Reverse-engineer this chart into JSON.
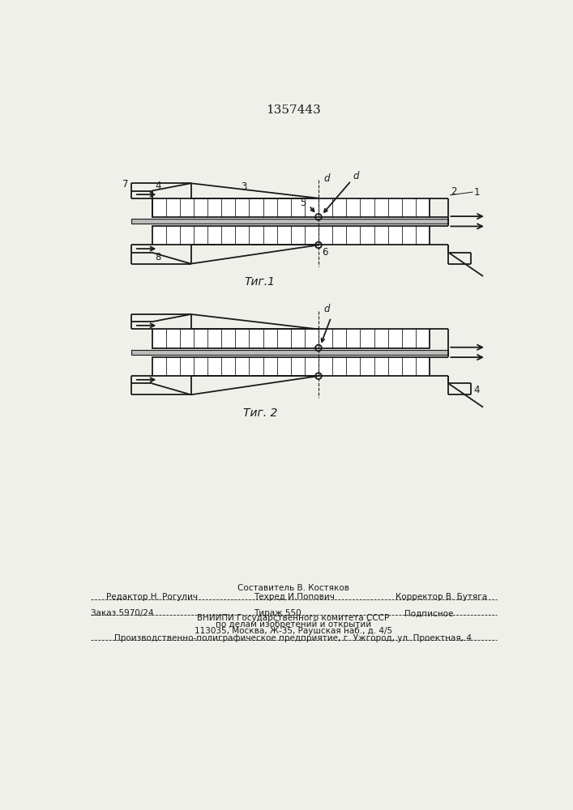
{
  "title": "1357443",
  "fig1_label": "Τиг.1",
  "fig2_label": "Τиг. 2",
  "bg_color": "#f0f0eb",
  "line_color": "#1a1a1a",
  "footer_line0_center": "Составитель В. Костяков",
  "footer_line1_left": "Редактор Н. Рогулич",
  "footer_line1_center": "Техред И.Попович",
  "footer_line1_right": "Корректор В. Бутяга",
  "footer_line2_left": "Заказ 5970/24",
  "footer_line2_center": "Тираж 550",
  "footer_line2_right": "Подписное",
  "footer_line3_center": "ВНИИПИ Государственного комитета СССР",
  "footer_line4_center": "по делам изобретений и открытий",
  "footer_line5_center": "113035, Москва, Ж-35, Раушская наб., д. 4/5",
  "footer_line6": "Производственно-полиграфическое предприятие, г. Ужгород, ул. Проектная, 4"
}
